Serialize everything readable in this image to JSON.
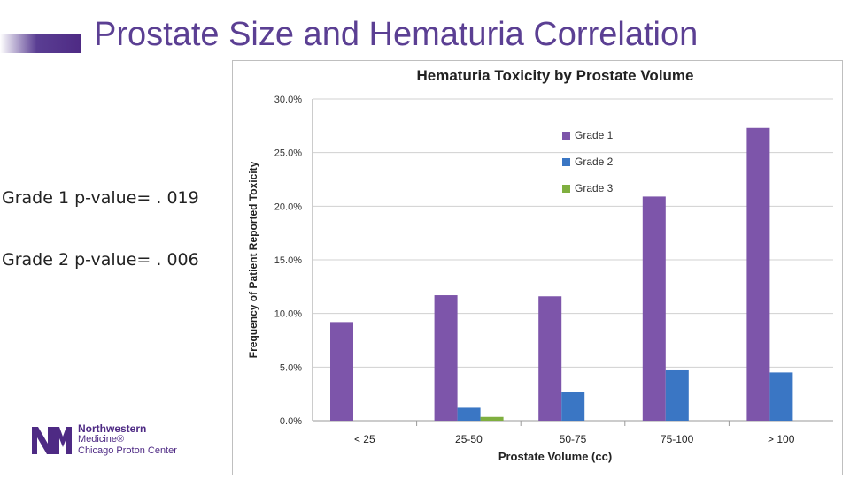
{
  "slide": {
    "title": "Prostate Size and Hematuria Correlation",
    "pvalue_grade1": "Grade 1 p-value= . 019",
    "pvalue_grade2": "Grade 2 p-value= . 006"
  },
  "logo": {
    "line1": "Northwestern",
    "line2": "Medicine®",
    "line3": "Chicago Proton Center"
  },
  "colors": {
    "accent": "#4e2a84",
    "grade1": "#7d55aa",
    "grade2": "#3a76c4",
    "grade3": "#7faf3f"
  },
  "chart_data": {
    "type": "bar",
    "title": "Hematuria Toxicity by Prostate Volume",
    "xlabel": "Prostate Volume (cc)",
    "ylabel": "Frequency of Patient Reported Toxicity",
    "categories": [
      "< 25",
      "25-50",
      "50-75",
      "75-100",
      "> 100"
    ],
    "series": [
      {
        "name": "Grade 1",
        "values": [
          9.2,
          11.7,
          11.6,
          20.9,
          27.3
        ]
      },
      {
        "name": "Grade 2",
        "values": [
          0.0,
          1.2,
          2.7,
          4.7,
          4.5
        ]
      },
      {
        "name": "Grade 3",
        "values": [
          0.0,
          0.35,
          0.0,
          0.0,
          0.0
        ]
      }
    ],
    "ylim": [
      0,
      30
    ],
    "yticks": [
      "0.0%",
      "5.0%",
      "10.0%",
      "15.0%",
      "20.0%",
      "25.0%",
      "30.0%"
    ],
    "legend_position": "top-right",
    "grid": true
  }
}
